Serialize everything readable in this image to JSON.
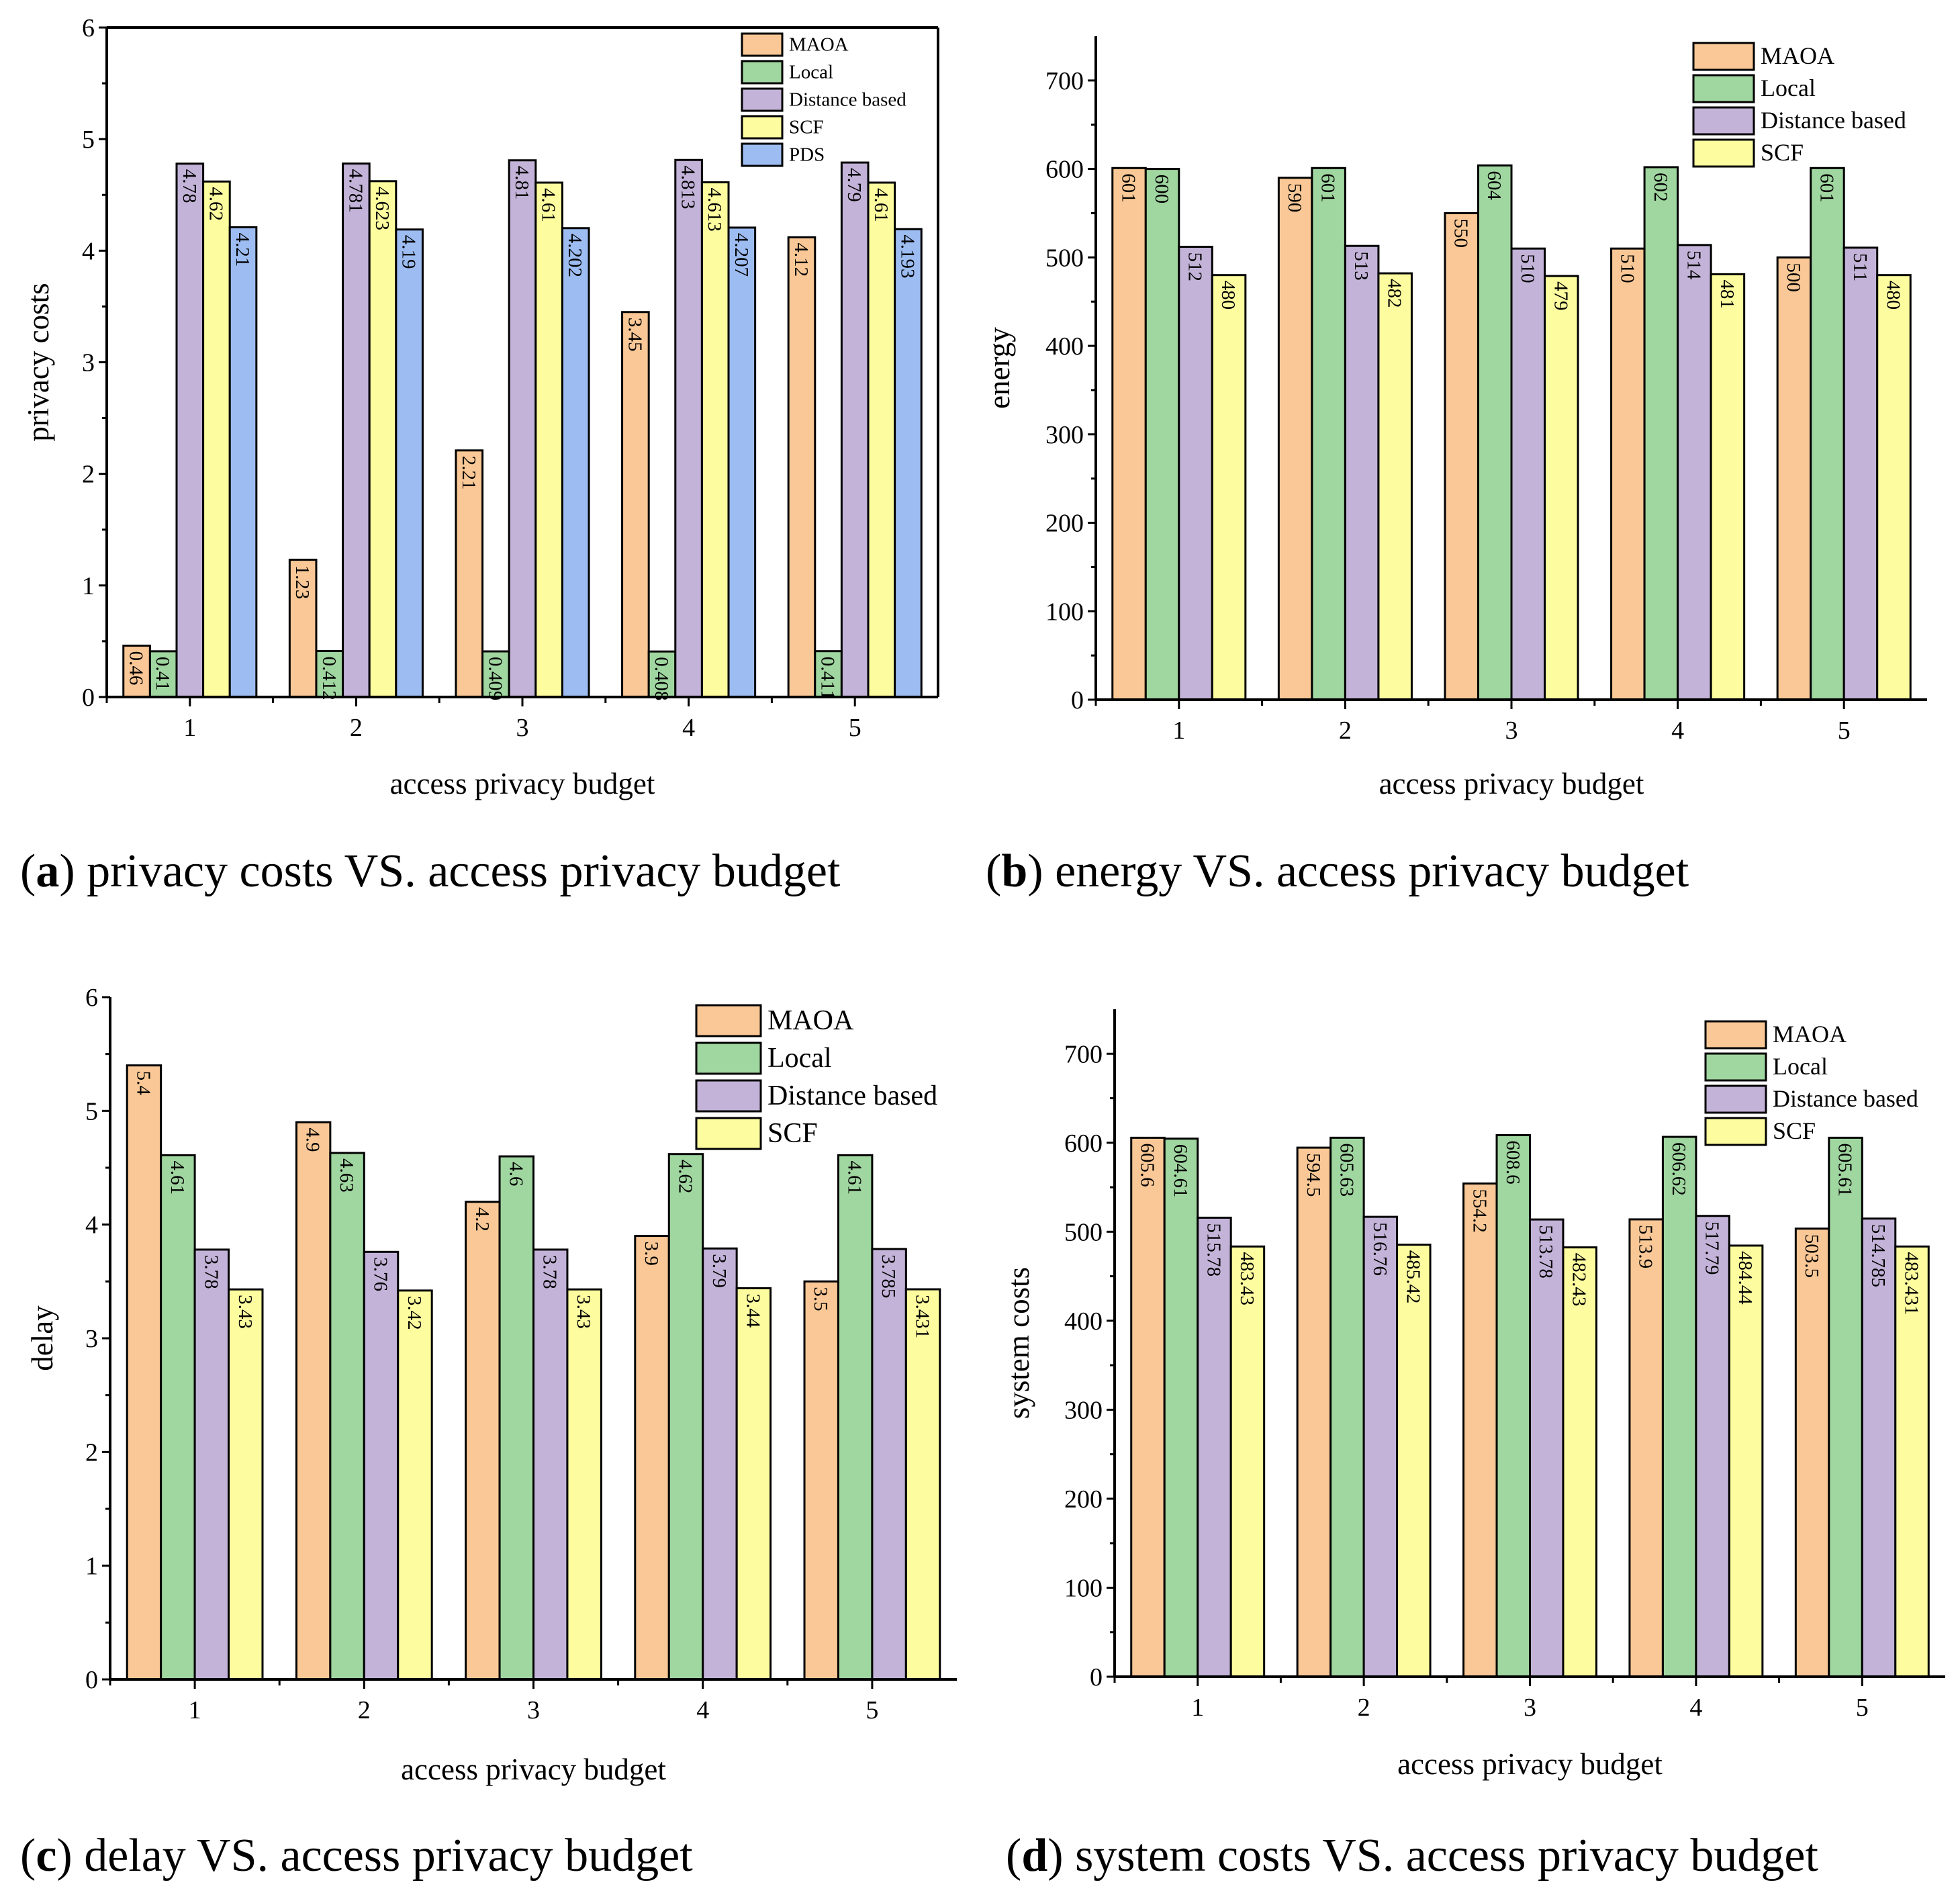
{
  "chart_data": [
    {
      "type": "bar",
      "caption": {
        "label": "a",
        "text": "privacy costs VS. access privacy budget"
      },
      "xlabel": "access privacy budget",
      "ylabel": "privacy costs",
      "categories": [
        "1",
        "2",
        "3",
        "4",
        "5"
      ],
      "ylim": [
        0,
        6
      ],
      "yticks": [
        0,
        1,
        2,
        3,
        4,
        5,
        6
      ],
      "legend": "top-right",
      "series": [
        {
          "name": "MAOA",
          "color": "#F9C896",
          "values": [
            0.46,
            1.23,
            2.21,
            3.45,
            4.12
          ],
          "labels": [
            "0.46",
            "1.23",
            "2.21",
            "3.45",
            "4.12"
          ]
        },
        {
          "name": "Local",
          "color": "#A0D6A0",
          "values": [
            0.41,
            0.412,
            0.409,
            0.408,
            0.411
          ],
          "labels": [
            "0.41",
            "0.412",
            "0.409",
            "0.408",
            "0.411"
          ]
        },
        {
          "name": "Distance based",
          "color": "#C3B3D8",
          "values": [
            4.78,
            4.781,
            4.81,
            4.813,
            4.79
          ],
          "labels": [
            "4.78",
            "4.781",
            "4.81",
            "4.813",
            "4.79"
          ]
        },
        {
          "name": "SCF",
          "color": "#FDFDA0",
          "values": [
            4.62,
            4.623,
            4.61,
            4.613,
            4.61
          ],
          "labels": [
            "4.62",
            "4.623",
            "4.61",
            "4.613",
            "4.61"
          ]
        },
        {
          "name": "PDS",
          "color": "#9DBDF2",
          "values": [
            4.21,
            4.19,
            4.202,
            4.207,
            4.193
          ],
          "labels": [
            "4.21",
            "4.19",
            "4.202",
            "4.207",
            "4.193"
          ]
        }
      ]
    },
    {
      "type": "bar",
      "caption": {
        "label": "b",
        "text": "energy VS. access privacy budget"
      },
      "xlabel": "access privacy budget",
      "ylabel": "energy",
      "categories": [
        "1",
        "2",
        "3",
        "4",
        "5"
      ],
      "ylim": [
        0,
        750
      ],
      "yticks": [
        0,
        100,
        200,
        300,
        400,
        500,
        600,
        700
      ],
      "legend": "top-right",
      "series": [
        {
          "name": "MAOA",
          "color": "#F9C896",
          "values": [
            601,
            590,
            550,
            510,
            500
          ],
          "labels": [
            "601",
            "590",
            "550",
            "510",
            "500"
          ]
        },
        {
          "name": "Local",
          "color": "#A0D6A0",
          "values": [
            600,
            601,
            604,
            602,
            601
          ],
          "labels": [
            "600",
            "601",
            "604",
            "602",
            "601"
          ]
        },
        {
          "name": "Distance based",
          "color": "#C3B3D8",
          "values": [
            512,
            513,
            510,
            514,
            511
          ],
          "labels": [
            "512",
            "513",
            "510",
            "514",
            "511"
          ]
        },
        {
          "name": "SCF",
          "color": "#FDFDA0",
          "values": [
            480,
            482,
            479,
            481,
            480
          ],
          "labels": [
            "480",
            "482",
            "479",
            "481",
            "480"
          ]
        }
      ]
    },
    {
      "type": "bar",
      "caption": {
        "label": "c",
        "text": "delay VS. access privacy budget"
      },
      "xlabel": "access privacy budget",
      "ylabel": "delay",
      "categories": [
        "1",
        "2",
        "3",
        "4",
        "5"
      ],
      "ylim": [
        0,
        6
      ],
      "yticks": [
        0,
        1,
        2,
        3,
        4,
        5,
        6
      ],
      "legend": "top-right",
      "series": [
        {
          "name": "MAOA",
          "color": "#F9C896",
          "values": [
            5.4,
            4.9,
            4.2,
            3.9,
            3.5
          ],
          "labels": [
            "5.4",
            "4.9",
            "4.2",
            "3.9",
            "3.5"
          ]
        },
        {
          "name": "Local",
          "color": "#A0D6A0",
          "values": [
            4.61,
            4.63,
            4.6,
            4.62,
            4.61
          ],
          "labels": [
            "4.61",
            "4.63",
            "4.6",
            "4.62",
            "4.61"
          ]
        },
        {
          "name": "Distance based",
          "color": "#C3B3D8",
          "values": [
            3.78,
            3.76,
            3.78,
            3.79,
            3.785
          ],
          "labels": [
            "3.78",
            "3.76",
            "3.78",
            "3.79",
            "3.785"
          ]
        },
        {
          "name": "SCF",
          "color": "#FDFDA0",
          "values": [
            3.43,
            3.42,
            3.43,
            3.44,
            3.431
          ],
          "labels": [
            "3.43",
            "3.42",
            "3.43",
            "3.44",
            "3.431"
          ]
        }
      ]
    },
    {
      "type": "bar",
      "caption": {
        "label": "d",
        "text": "system costs VS. access privacy budget"
      },
      "xlabel": "access privacy budget",
      "ylabel": "system costs",
      "categories": [
        "1",
        "2",
        "3",
        "4",
        "5"
      ],
      "ylim": [
        0,
        750
      ],
      "yticks": [
        0,
        100,
        200,
        300,
        400,
        500,
        600,
        700
      ],
      "legend": "top-right",
      "series": [
        {
          "name": "MAOA",
          "color": "#F9C896",
          "values": [
            605.6,
            594.5,
            554.2,
            513.9,
            503.5
          ],
          "labels": [
            "605.6",
            "594.5",
            "554.2",
            "513.9",
            "503.5"
          ]
        },
        {
          "name": "Local",
          "color": "#A0D6A0",
          "values": [
            604.61,
            605.63,
            608.6,
            606.62,
            605.61
          ],
          "labels": [
            "604.61",
            "605.63",
            "608.6",
            "606.62",
            "605.61"
          ]
        },
        {
          "name": "Distance based",
          "color": "#C3B3D8",
          "values": [
            515.78,
            516.76,
            513.78,
            517.79,
            514.785
          ],
          "labels": [
            "515.78",
            "516.76",
            "513.78",
            "517.79",
            "514.785"
          ]
        },
        {
          "name": "SCF",
          "color": "#FDFDA0",
          "values": [
            483.43,
            485.42,
            482.43,
            484.44,
            483.431
          ],
          "labels": [
            "483.43",
            "485.42",
            "482.43",
            "484.44",
            "483.431"
          ]
        }
      ]
    }
  ]
}
